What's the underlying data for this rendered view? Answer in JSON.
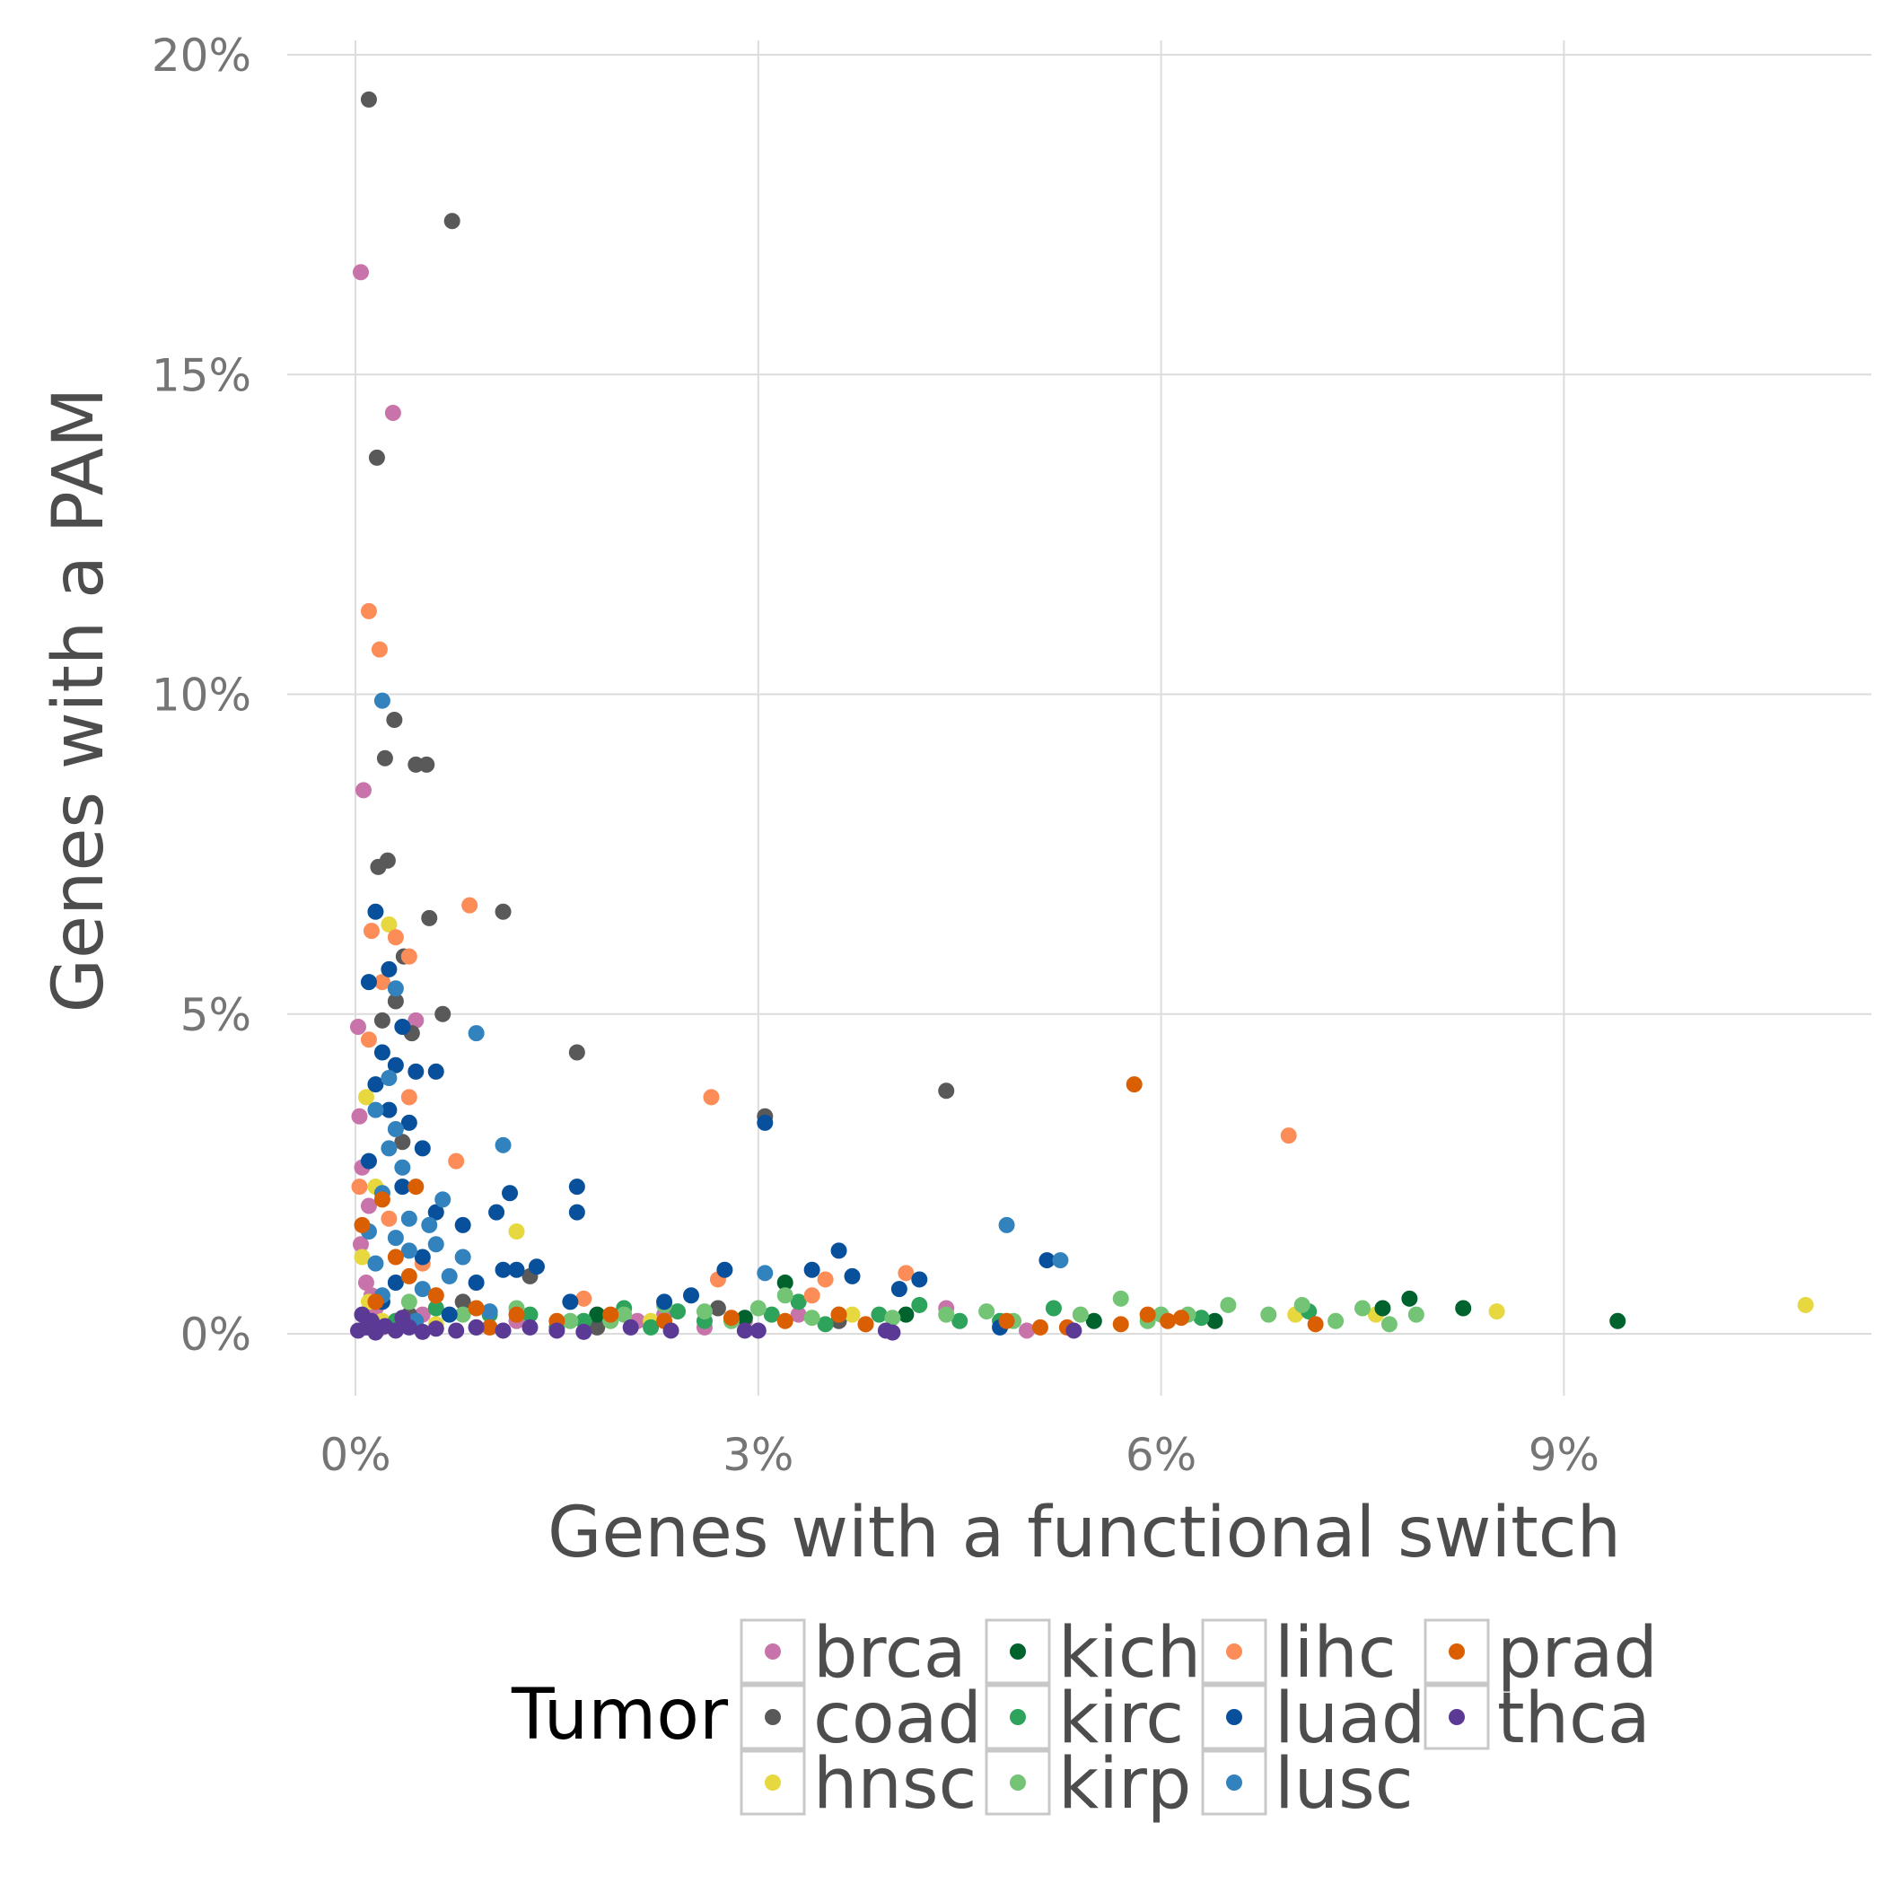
{
  "chart_data": {
    "type": "scatter",
    "xlabel": "Genes with a functional switch",
    "ylabel": "Genes with a PAM",
    "xlim": [
      -0.5,
      11.3
    ],
    "ylim": [
      -0.9,
      20.2
    ],
    "xticks": [
      0,
      3,
      6,
      9
    ],
    "xtick_labels": [
      "0%",
      "3%",
      "6%",
      "9%"
    ],
    "yticks": [
      0,
      5,
      10,
      15,
      20
    ],
    "ytick_labels": [
      "0%",
      "5%",
      "10%",
      "15%",
      "20%"
    ],
    "grid": true,
    "legend": {
      "title": "Tumor",
      "placement": "bottom",
      "columns": [
        [
          "brca",
          "coad",
          "hnsc"
        ],
        [
          "kich",
          "kirc",
          "kirp"
        ],
        [
          "lihc",
          "luad",
          "lusc"
        ],
        [
          "prad",
          "thca"
        ]
      ]
    },
    "series": [
      {
        "name": "brca",
        "color": "#c874aa",
        "points": [
          [
            0.04,
            16.6
          ],
          [
            0.28,
            14.4
          ],
          [
            0.06,
            8.5
          ],
          [
            0.02,
            4.8
          ],
          [
            0.45,
            4.9
          ],
          [
            0.03,
            3.4
          ],
          [
            0.05,
            2.6
          ],
          [
            0.1,
            2.0
          ],
          [
            0.04,
            1.4
          ],
          [
            0.08,
            0.8
          ],
          [
            0.15,
            0.4
          ],
          [
            0.3,
            0.2
          ],
          [
            0.5,
            0.3
          ],
          [
            1.2,
            0.2
          ],
          [
            2.3,
            0.3
          ],
          [
            2.6,
            0.1
          ],
          [
            2.9,
            0.2
          ],
          [
            3.3,
            0.3
          ],
          [
            4.4,
            0.4
          ],
          [
            5.0,
            0.05
          ],
          [
            0.2,
            0.1
          ],
          [
            0.12,
            0.6
          ],
          [
            1.5,
            0.1
          ],
          [
            2.1,
            0.2
          ],
          [
            3.8,
            0.15
          ]
        ]
      },
      {
        "name": "coad",
        "color": "#595959",
        "points": [
          [
            0.1,
            19.3
          ],
          [
            0.72,
            17.4
          ],
          [
            0.16,
            13.7
          ],
          [
            0.29,
            9.6
          ],
          [
            0.22,
            9.0
          ],
          [
            0.45,
            8.9
          ],
          [
            0.53,
            8.9
          ],
          [
            0.17,
            7.3
          ],
          [
            0.24,
            7.4
          ],
          [
            1.1,
            6.6
          ],
          [
            0.55,
            6.5
          ],
          [
            0.36,
            5.9
          ],
          [
            0.65,
            5.0
          ],
          [
            0.42,
            4.7
          ],
          [
            1.65,
            4.4
          ],
          [
            0.3,
            5.2
          ],
          [
            0.2,
            4.9
          ],
          [
            4.4,
            3.8
          ],
          [
            3.05,
            3.4
          ],
          [
            0.35,
            3.0
          ],
          [
            1.3,
            0.9
          ],
          [
            0.8,
            0.5
          ],
          [
            0.4,
            0.3
          ],
          [
            2.7,
            0.4
          ],
          [
            3.6,
            0.2
          ],
          [
            1.8,
            0.1
          ]
        ]
      },
      {
        "name": "hnsc",
        "color": "#e6d83e",
        "points": [
          [
            0.25,
            6.4
          ],
          [
            1.2,
            1.6
          ],
          [
            0.05,
            1.2
          ],
          [
            0.1,
            0.5
          ],
          [
            0.2,
            0.2
          ],
          [
            0.08,
            3.7
          ],
          [
            0.15,
            2.3
          ],
          [
            3.7,
            0.3
          ],
          [
            7.0,
            0.3
          ],
          [
            7.6,
            0.3
          ],
          [
            8.5,
            0.35
          ],
          [
            10.8,
            0.45
          ],
          [
            2.2,
            0.2
          ],
          [
            0.6,
            0.15
          ]
        ]
      },
      {
        "name": "kich",
        "color": "#00632e",
        "points": [
          [
            3.2,
            0.8
          ],
          [
            4.1,
            0.3
          ],
          [
            5.5,
            0.2
          ],
          [
            7.65,
            0.4
          ],
          [
            7.85,
            0.55
          ],
          [
            8.25,
            0.4
          ],
          [
            9.4,
            0.2
          ],
          [
            1.8,
            0.3
          ],
          [
            2.9,
            0.25
          ],
          [
            6.4,
            0.2
          ]
        ]
      },
      {
        "name": "kirc",
        "color": "#2ea35c",
        "points": [
          [
            0.3,
            0.2
          ],
          [
            0.6,
            0.4
          ],
          [
            0.9,
            0.1
          ],
          [
            1.3,
            0.3
          ],
          [
            1.7,
            0.2
          ],
          [
            2.0,
            0.4
          ],
          [
            2.2,
            0.1
          ],
          [
            2.6,
            0.2
          ],
          [
            3.1,
            0.3
          ],
          [
            3.3,
            0.5
          ],
          [
            3.5,
            0.15
          ],
          [
            3.9,
            0.3
          ],
          [
            4.2,
            0.45
          ],
          [
            4.5,
            0.2
          ],
          [
            5.2,
            0.4
          ],
          [
            6.3,
            0.25
          ],
          [
            7.1,
            0.35
          ],
          [
            1.0,
            0.3
          ],
          [
            1.5,
            0.1
          ],
          [
            2.4,
            0.35
          ],
          [
            4.8,
            0.2
          ]
        ]
      },
      {
        "name": "kirp",
        "color": "#74c476",
        "points": [
          [
            0.4,
            0.5
          ],
          [
            0.8,
            0.3
          ],
          [
            1.2,
            0.4
          ],
          [
            1.6,
            0.2
          ],
          [
            2.0,
            0.3
          ],
          [
            2.3,
            0.45
          ],
          [
            2.6,
            0.35
          ],
          [
            2.8,
            0.2
          ],
          [
            3.0,
            0.4
          ],
          [
            3.2,
            0.6
          ],
          [
            3.6,
            0.3
          ],
          [
            4.0,
            0.25
          ],
          [
            4.4,
            0.3
          ],
          [
            4.9,
            0.2
          ],
          [
            5.4,
            0.3
          ],
          [
            5.7,
            0.55
          ],
          [
            6.0,
            0.3
          ],
          [
            6.2,
            0.3
          ],
          [
            6.5,
            0.45
          ],
          [
            6.8,
            0.3
          ],
          [
            7.05,
            0.45
          ],
          [
            7.3,
            0.2
          ],
          [
            7.5,
            0.4
          ],
          [
            7.7,
            0.15
          ],
          [
            7.9,
            0.3
          ],
          [
            5.9,
            0.2
          ],
          [
            4.7,
            0.35
          ],
          [
            3.4,
            0.25
          ],
          [
            1.9,
            0.2
          ]
        ]
      },
      {
        "name": "lihc",
        "color": "#fc8d59",
        "points": [
          [
            0.1,
            11.3
          ],
          [
            0.18,
            10.7
          ],
          [
            0.85,
            6.7
          ],
          [
            0.12,
            6.3
          ],
          [
            0.3,
            6.2
          ],
          [
            0.4,
            5.9
          ],
          [
            0.2,
            5.5
          ],
          [
            0.1,
            4.6
          ],
          [
            0.4,
            3.7
          ],
          [
            0.75,
            2.7
          ],
          [
            2.65,
            3.7
          ],
          [
            6.95,
            3.1
          ],
          [
            4.1,
            0.95
          ],
          [
            3.5,
            0.85
          ],
          [
            2.7,
            0.85
          ],
          [
            1.7,
            0.55
          ],
          [
            0.6,
            0.6
          ],
          [
            0.03,
            2.3
          ],
          [
            0.25,
            1.8
          ],
          [
            0.5,
            1.1
          ],
          [
            3.4,
            0.6
          ]
        ]
      },
      {
        "name": "luad",
        "color": "#08509b",
        "points": [
          [
            0.15,
            6.6
          ],
          [
            0.1,
            5.5
          ],
          [
            0.25,
            5.7
          ],
          [
            0.35,
            4.8
          ],
          [
            0.2,
            4.4
          ],
          [
            0.45,
            4.1
          ],
          [
            0.6,
            4.1
          ],
          [
            0.3,
            4.2
          ],
          [
            0.15,
            3.9
          ],
          [
            0.25,
            3.5
          ],
          [
            0.4,
            3.3
          ],
          [
            0.5,
            2.9
          ],
          [
            0.1,
            2.7
          ],
          [
            0.35,
            2.3
          ],
          [
            0.6,
            1.9
          ],
          [
            0.8,
            1.7
          ],
          [
            1.05,
            1.9
          ],
          [
            1.15,
            2.2
          ],
          [
            1.65,
            2.3
          ],
          [
            1.65,
            1.9
          ],
          [
            1.1,
            1.0
          ],
          [
            1.2,
            1.0
          ],
          [
            0.9,
            0.8
          ],
          [
            1.35,
            1.05
          ],
          [
            1.6,
            0.5
          ],
          [
            2.5,
            0.6
          ],
          [
            2.75,
            1.0
          ],
          [
            3.05,
            3.3
          ],
          [
            3.4,
            1.0
          ],
          [
            3.6,
            1.3
          ],
          [
            3.7,
            0.9
          ],
          [
            4.2,
            0.85
          ],
          [
            4.05,
            0.7
          ],
          [
            5.15,
            1.15
          ],
          [
            4.8,
            0.1
          ],
          [
            0.7,
            0.3
          ],
          [
            0.3,
            0.8
          ],
          [
            0.5,
            1.2
          ],
          [
            0.2,
            0.5
          ],
          [
            2.3,
            0.5
          ]
        ]
      },
      {
        "name": "lusc",
        "color": "#3182bd",
        "points": [
          [
            0.2,
            9.9
          ],
          [
            0.3,
            5.4
          ],
          [
            0.9,
            4.7
          ],
          [
            0.25,
            4.0
          ],
          [
            0.15,
            3.5
          ],
          [
            0.3,
            3.2
          ],
          [
            0.35,
            2.6
          ],
          [
            0.2,
            2.2
          ],
          [
            0.4,
            1.8
          ],
          [
            0.65,
            2.1
          ],
          [
            0.55,
            1.7
          ],
          [
            0.8,
            1.2
          ],
          [
            1.1,
            2.95
          ],
          [
            0.4,
            1.3
          ],
          [
            0.7,
            0.9
          ],
          [
            0.5,
            0.7
          ],
          [
            0.3,
            1.5
          ],
          [
            0.15,
            1.1
          ],
          [
            0.2,
            0.6
          ],
          [
            4.85,
            1.7
          ],
          [
            5.25,
            1.15
          ],
          [
            3.05,
            0.95
          ],
          [
            1.0,
            0.35
          ],
          [
            0.45,
            0.2
          ],
          [
            0.25,
            2.9
          ],
          [
            0.1,
            1.6
          ],
          [
            0.6,
            1.4
          ]
        ]
      },
      {
        "name": "prad",
        "color": "#d95f02",
        "points": [
          [
            5.8,
            3.9
          ],
          [
            0.45,
            2.3
          ],
          [
            0.2,
            2.1
          ],
          [
            0.05,
            1.7
          ],
          [
            0.3,
            1.2
          ],
          [
            0.4,
            0.9
          ],
          [
            0.6,
            0.6
          ],
          [
            0.9,
            0.4
          ],
          [
            1.2,
            0.3
          ],
          [
            1.5,
            0.2
          ],
          [
            1.9,
            0.3
          ],
          [
            2.3,
            0.2
          ],
          [
            2.8,
            0.25
          ],
          [
            3.2,
            0.2
          ],
          [
            3.6,
            0.3
          ],
          [
            3.8,
            0.15
          ],
          [
            4.85,
            0.2
          ],
          [
            5.1,
            0.1
          ],
          [
            5.3,
            0.1
          ],
          [
            5.7,
            0.15
          ],
          [
            5.9,
            0.3
          ],
          [
            6.05,
            0.2
          ],
          [
            6.15,
            0.25
          ],
          [
            7.15,
            0.15
          ],
          [
            0.15,
            0.5
          ],
          [
            1.0,
            0.1
          ]
        ]
      },
      {
        "name": "thca",
        "color": "#5b3a96",
        "points": [
          [
            0.02,
            0.05
          ],
          [
            0.08,
            0.1
          ],
          [
            0.15,
            0.02
          ],
          [
            0.22,
            0.12
          ],
          [
            0.3,
            0.05
          ],
          [
            0.4,
            0.1
          ],
          [
            0.5,
            0.03
          ],
          [
            0.6,
            0.08
          ],
          [
            0.75,
            0.05
          ],
          [
            0.9,
            0.1
          ],
          [
            1.1,
            0.05
          ],
          [
            1.3,
            0.1
          ],
          [
            1.5,
            0.05
          ],
          [
            1.7,
            0.03
          ],
          [
            2.05,
            0.1
          ],
          [
            2.35,
            0.05
          ],
          [
            2.9,
            0.05
          ],
          [
            3.0,
            0.05
          ],
          [
            3.95,
            0.05
          ],
          [
            4.0,
            0.02
          ],
          [
            5.35,
            0.05
          ],
          [
            0.12,
            0.2
          ],
          [
            0.05,
            0.3
          ],
          [
            0.35,
            0.25
          ]
        ]
      }
    ]
  }
}
